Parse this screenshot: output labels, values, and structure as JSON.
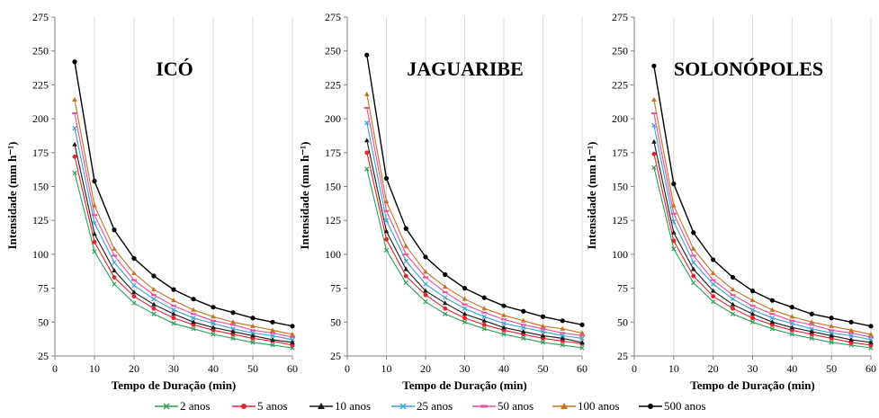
{
  "chart_data": [
    {
      "type": "line",
      "title": "ICÓ",
      "xlabel": "Tempo de Duração (min)",
      "ylabel": "Intensidade (mm h⁻¹)",
      "xlim": [
        0,
        60
      ],
      "ylim": [
        25,
        275
      ],
      "xticks": [
        0,
        10,
        20,
        30,
        40,
        50,
        60
      ],
      "yticks": [
        25,
        50,
        75,
        100,
        125,
        150,
        175,
        200,
        225,
        250,
        275
      ],
      "grid": "vertical",
      "x": [
        5,
        10,
        15,
        20,
        25,
        30,
        35,
        40,
        45,
        50,
        55,
        60
      ],
      "series": [
        {
          "name": "2 anos",
          "values": [
            160,
            102,
            78,
            64,
            56,
            49,
            45,
            41,
            38,
            35,
            33,
            31
          ]
        },
        {
          "name": "5 anos",
          "values": [
            172,
            109,
            83,
            69,
            60,
            53,
            48,
            44,
            41,
            38,
            36,
            33
          ]
        },
        {
          "name": "10 anos",
          "values": [
            181,
            115,
            88,
            72,
            63,
            56,
            50,
            46,
            43,
            40,
            37,
            35
          ]
        },
        {
          "name": "25 anos",
          "values": [
            193,
            123,
            94,
            77,
            67,
            59,
            53,
            49,
            45,
            42,
            40,
            37
          ]
        },
        {
          "name": "50 anos",
          "values": [
            204,
            129,
            99,
            81,
            70,
            62,
            56,
            51,
            48,
            44,
            42,
            39
          ]
        },
        {
          "name": "100 anos",
          "values": [
            214,
            136,
            104,
            86,
            74,
            66,
            59,
            54,
            50,
            47,
            44,
            41
          ]
        },
        {
          "name": "500 anos",
          "values": [
            242,
            154,
            118,
            97,
            84,
            74,
            67,
            61,
            57,
            53,
            50,
            47
          ]
        }
      ]
    },
    {
      "type": "line",
      "title": "JAGUARIBE",
      "xlabel": "Tempo de Duração (min)",
      "ylabel": "Intensidade (mm h⁻¹)",
      "xlim": [
        0,
        60
      ],
      "ylim": [
        25,
        275
      ],
      "xticks": [
        0,
        10,
        20,
        30,
        40,
        50,
        60
      ],
      "yticks": [
        25,
        50,
        75,
        100,
        125,
        150,
        175,
        200,
        225,
        250,
        275
      ],
      "grid": "vertical",
      "x": [
        5,
        10,
        15,
        20,
        25,
        30,
        35,
        40,
        45,
        50,
        55,
        60
      ],
      "series": [
        {
          "name": "2 anos",
          "values": [
            163,
            103,
            79,
            65,
            56,
            50,
            45,
            41,
            38,
            35,
            33,
            31
          ]
        },
        {
          "name": "5 anos",
          "values": [
            175,
            111,
            84,
            70,
            60,
            53,
            48,
            44,
            41,
            38,
            36,
            34
          ]
        },
        {
          "name": "10 anos",
          "values": [
            184,
            117,
            89,
            73,
            64,
            56,
            51,
            46,
            43,
            40,
            38,
            35
          ]
        },
        {
          "name": "25 anos",
          "values": [
            197,
            125,
            95,
            78,
            68,
            60,
            54,
            49,
            46,
            43,
            40,
            38
          ]
        },
        {
          "name": "50 anos",
          "values": [
            208,
            132,
            100,
            83,
            72,
            63,
            57,
            52,
            48,
            45,
            42,
            40
          ]
        },
        {
          "name": "100 anos",
          "values": [
            218,
            139,
            106,
            87,
            76,
            67,
            60,
            55,
            51,
            47,
            45,
            42
          ]
        },
        {
          "name": "500 anos",
          "values": [
            247,
            156,
            119,
            98,
            85,
            75,
            68,
            62,
            58,
            54,
            51,
            48
          ]
        }
      ]
    },
    {
      "type": "line",
      "title": "SOLONÓPOLES",
      "xlabel": "Tempo de Duração (min)",
      "ylabel": "Intensidade (mm h⁻¹)",
      "xlim": [
        0,
        60
      ],
      "ylim": [
        25,
        275
      ],
      "xticks": [
        0,
        10,
        20,
        30,
        40,
        50,
        60
      ],
      "yticks": [
        25,
        50,
        75,
        100,
        125,
        150,
        175,
        200,
        225,
        250,
        275
      ],
      "grid": "vertical",
      "x": [
        5,
        10,
        15,
        20,
        25,
        30,
        35,
        40,
        45,
        50,
        55,
        60
      ],
      "series": [
        {
          "name": "2 anos",
          "values": [
            164,
            104,
            79,
            65,
            56,
            50,
            45,
            41,
            38,
            35,
            33,
            31
          ]
        },
        {
          "name": "5 anos",
          "values": [
            174,
            110,
            84,
            69,
            60,
            53,
            48,
            44,
            41,
            38,
            35,
            33
          ]
        },
        {
          "name": "10 anos",
          "values": [
            183,
            116,
            89,
            73,
            63,
            56,
            50,
            46,
            43,
            40,
            37,
            35
          ]
        },
        {
          "name": "25 anos",
          "values": [
            195,
            124,
            94,
            78,
            67,
            59,
            53,
            49,
            45,
            42,
            40,
            37
          ]
        },
        {
          "name": "50 anos",
          "values": [
            204,
            130,
            99,
            81,
            70,
            62,
            56,
            51,
            48,
            44,
            42,
            39
          ]
        },
        {
          "name": "100 anos",
          "values": [
            214,
            136,
            104,
            86,
            74,
            66,
            59,
            54,
            50,
            47,
            44,
            41
          ]
        },
        {
          "name": "500 anos",
          "values": [
            239,
            152,
            116,
            96,
            83,
            73,
            66,
            61,
            56,
            53,
            50,
            47
          ]
        }
      ]
    }
  ],
  "legend": {
    "placement": "bottom",
    "items": [
      {
        "label": "2 anos",
        "color": "#2e9e57",
        "marker": "x"
      },
      {
        "label": "5 anos",
        "color": "#e3242b",
        "marker": "circle"
      },
      {
        "label": "10 anos",
        "color": "#1a1a1a",
        "marker": "triangle"
      },
      {
        "label": "25 anos",
        "color": "#3b9fd8",
        "marker": "x"
      },
      {
        "label": "50 anos",
        "color": "#e84f9e",
        "marker": "dash"
      },
      {
        "label": "100 anos",
        "color": "#c9701e",
        "marker": "triangle"
      },
      {
        "label": "500 anos",
        "color": "#000000",
        "marker": "circle"
      }
    ]
  }
}
